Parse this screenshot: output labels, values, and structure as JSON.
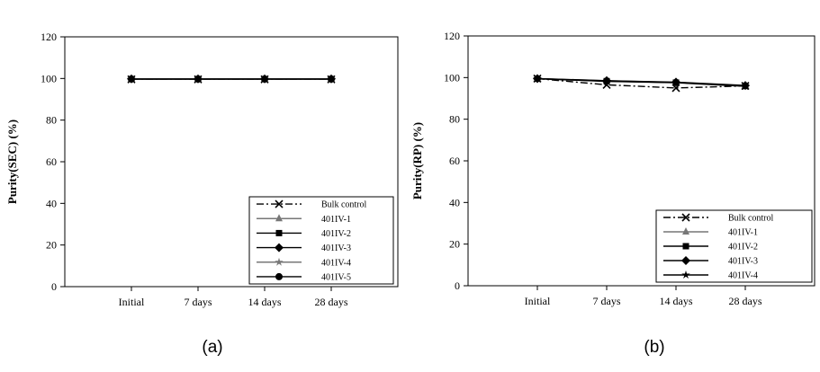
{
  "chart_data": [
    {
      "type": "line",
      "panel_label": "(a)",
      "title": "",
      "xlabel": "",
      "ylabel": "Purity(SEC) (%)",
      "ylim": [
        0,
        120
      ],
      "yticks": [
        "0",
        "20",
        "40",
        "60",
        "80",
        "100",
        "120"
      ],
      "ytick_values": [
        0,
        20,
        40,
        60,
        80,
        100,
        120
      ],
      "categories": [
        "Initial",
        "7 days",
        "14 days",
        "28 days"
      ],
      "grid": false,
      "legend_position": "bottom-right",
      "series": [
        {
          "name": "Bulk control",
          "values": [
            99.6,
            99.6,
            99.6,
            99.6
          ],
          "marker": "x",
          "dash": "dashdot"
        },
        {
          "name": "401IV-1",
          "values": [
            99.7,
            99.7,
            99.7,
            99.7
          ],
          "marker": "triangle",
          "dash": "solid",
          "color": "#777777"
        },
        {
          "name": "401IV-2",
          "values": [
            99.7,
            99.7,
            99.7,
            99.7
          ],
          "marker": "square",
          "dash": "solid"
        },
        {
          "name": "401IV-3",
          "values": [
            99.8,
            99.8,
            99.8,
            99.8
          ],
          "marker": "diamond",
          "dash": "solid"
        },
        {
          "name": "401IV-4",
          "values": [
            99.7,
            99.7,
            99.7,
            99.7
          ],
          "marker": "star",
          "dash": "solid",
          "color": "#777777"
        },
        {
          "name": "401IV-5",
          "values": [
            99.7,
            99.7,
            99.7,
            99.7
          ],
          "marker": "circle",
          "dash": "solid"
        }
      ]
    },
    {
      "type": "line",
      "panel_label": "(b)",
      "title": "",
      "xlabel": "",
      "ylabel": "Purity(RP) (%)",
      "ylim": [
        0,
        120
      ],
      "yticks": [
        "0",
        "20",
        "40",
        "60",
        "80",
        "100",
        "120"
      ],
      "ytick_values": [
        0,
        20,
        40,
        60,
        80,
        100,
        120
      ],
      "categories": [
        "Initial",
        "7 days",
        "14 days",
        "28 days"
      ],
      "grid": false,
      "legend_position": "bottom-right",
      "series": [
        {
          "name": "Bulk control",
          "values": [
            99.5,
            96.5,
            95.0,
            96.0
          ],
          "marker": "x",
          "dash": "dashdot"
        },
        {
          "name": "401IV-1",
          "values": [
            99.5,
            98.5,
            97.7,
            96.0
          ],
          "marker": "triangle",
          "dash": "solid",
          "color": "#777777"
        },
        {
          "name": "401IV-2",
          "values": [
            99.5,
            98.3,
            97.6,
            96.0
          ],
          "marker": "square",
          "dash": "solid"
        },
        {
          "name": "401IV-3",
          "values": [
            99.5,
            98.5,
            97.8,
            96.2
          ],
          "marker": "diamond",
          "dash": "solid"
        },
        {
          "name": "401IV-4",
          "values": [
            99.4,
            98.2,
            97.5,
            95.8
          ],
          "marker": "star",
          "dash": "solid"
        }
      ]
    }
  ]
}
